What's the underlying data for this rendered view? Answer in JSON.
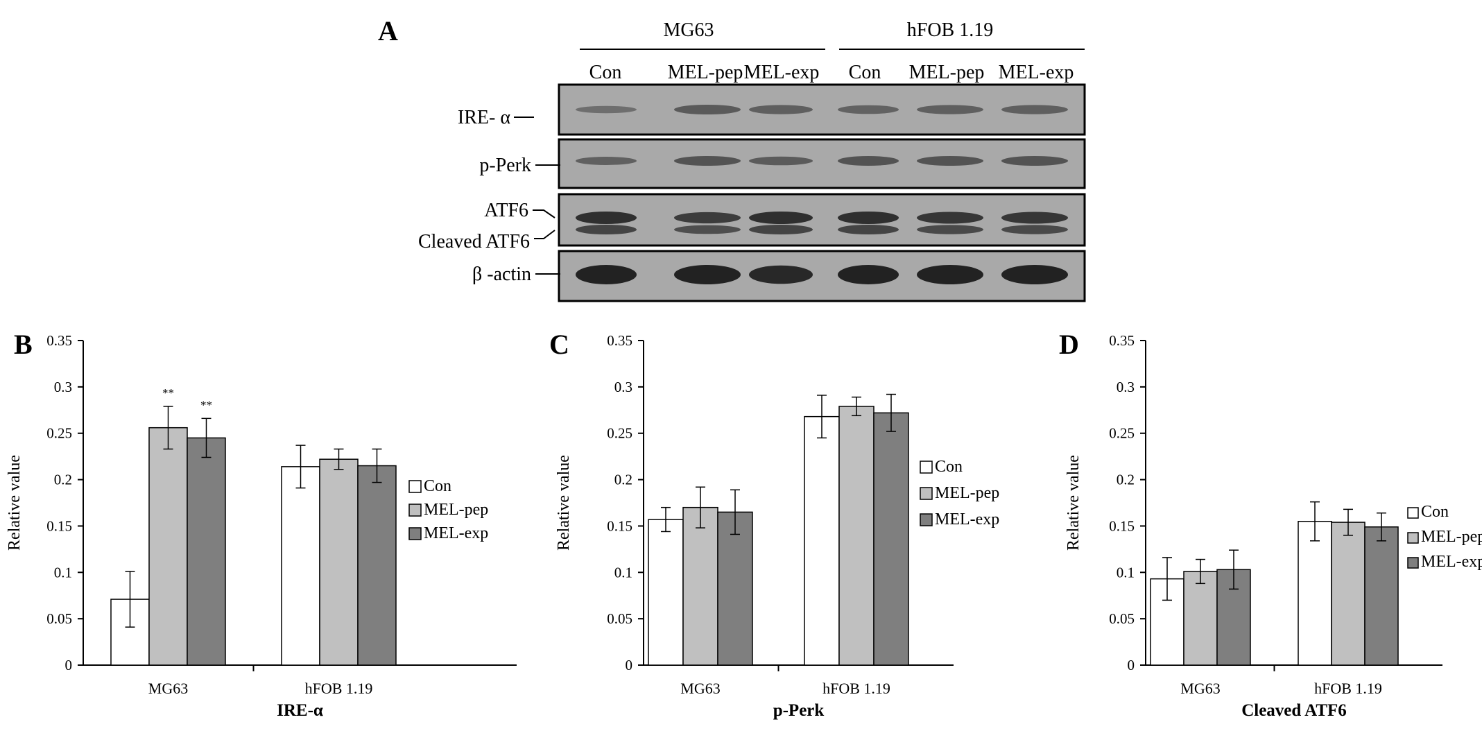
{
  "blot": {
    "panel_label": "A",
    "cell_lines": [
      "MG63",
      "hFOB 1.19"
    ],
    "lanes": [
      "Con",
      "MEL-pep",
      "MEL-exp",
      "Con",
      "MEL-pep",
      "MEL-exp"
    ],
    "rows": [
      {
        "label": "IRE- α"
      },
      {
        "label": "p-Perk"
      },
      {
        "label": "ATF6",
        "label2": "Cleaved ATF6"
      },
      {
        "label": "β -actin"
      }
    ]
  },
  "chart_data": [
    {
      "type": "bar",
      "panel_label": "B",
      "categories": [
        "MG63",
        "hFOB 1.19"
      ],
      "xlabel": "IRE-α",
      "ylabel": "Relative value",
      "ylim": [
        0,
        0.35
      ],
      "yticks": [
        0,
        0.05,
        0.1,
        0.15,
        0.2,
        0.25,
        0.3,
        0.35
      ],
      "ytick_labels": [
        "0",
        "0.05",
        "0.1",
        "0.15",
        "0.2",
        "0.25",
        "0.3",
        "0.35"
      ],
      "legend_position": "right",
      "series": [
        {
          "name": "Con",
          "values": [
            0.071,
            0.214
          ],
          "errors": [
            0.03,
            0.023
          ],
          "annotations": [
            "",
            ""
          ]
        },
        {
          "name": "MEL-pep",
          "values": [
            0.256,
            0.222
          ],
          "errors": [
            0.023,
            0.011
          ],
          "annotations": [
            "**",
            ""
          ]
        },
        {
          "name": "MEL-exp",
          "values": [
            0.245,
            0.215
          ],
          "errors": [
            0.021,
            0.018
          ],
          "annotations": [
            "**",
            ""
          ]
        }
      ]
    },
    {
      "type": "bar",
      "panel_label": "C",
      "categories": [
        "MG63",
        "hFOB 1.19"
      ],
      "xlabel": "p-Perk",
      "ylabel": "Relative value",
      "ylim": [
        0,
        0.35
      ],
      "yticks": [
        0,
        0.05,
        0.1,
        0.15,
        0.2,
        0.25,
        0.3,
        0.35
      ],
      "ytick_labels": [
        "0",
        "0.05",
        "0.1",
        "0.15",
        "0.2",
        "0.25",
        "0.3",
        "0.35"
      ],
      "legend_position": "right",
      "series": [
        {
          "name": "Con",
          "values": [
            0.157,
            0.268
          ],
          "errors": [
            0.013,
            0.023
          ],
          "annotations": [
            "",
            ""
          ]
        },
        {
          "name": "MEL-pep",
          "values": [
            0.17,
            0.279
          ],
          "errors": [
            0.022,
            0.01
          ],
          "annotations": [
            "",
            ""
          ]
        },
        {
          "name": "MEL-exp",
          "values": [
            0.165,
            0.272
          ],
          "errors": [
            0.024,
            0.02
          ],
          "annotations": [
            "",
            ""
          ]
        }
      ]
    },
    {
      "type": "bar",
      "panel_label": "D",
      "categories": [
        "MG63",
        "hFOB 1.19"
      ],
      "xlabel": "Cleaved ATF6",
      "ylabel": "Relative value",
      "ylim": [
        0,
        0.35
      ],
      "yticks": [
        0,
        0.05,
        0.1,
        0.15,
        0.2,
        0.25,
        0.3,
        0.35
      ],
      "ytick_labels": [
        "0",
        "0.05",
        "0.1",
        "0.15",
        "0.2",
        "0.25",
        "0.3",
        "0.35"
      ],
      "legend_position": "right",
      "series": [
        {
          "name": "Con",
          "values": [
            0.093,
            0.155
          ],
          "errors": [
            0.023,
            0.021
          ],
          "annotations": [
            "",
            ""
          ]
        },
        {
          "name": "MEL-pep",
          "values": [
            0.101,
            0.154
          ],
          "errors": [
            0.013,
            0.014
          ],
          "annotations": [
            "",
            ""
          ]
        },
        {
          "name": "MEL-exp",
          "values": [
            0.103,
            0.149
          ],
          "errors": [
            0.021,
            0.015
          ],
          "annotations": [
            "",
            ""
          ]
        }
      ]
    }
  ],
  "colors": {
    "series": [
      "#ffffff",
      "#c0c0c0",
      "#7f7f7f"
    ],
    "stroke": "#000000",
    "blot_bg": "#a9a9a9",
    "band": "#1a1a1a"
  }
}
